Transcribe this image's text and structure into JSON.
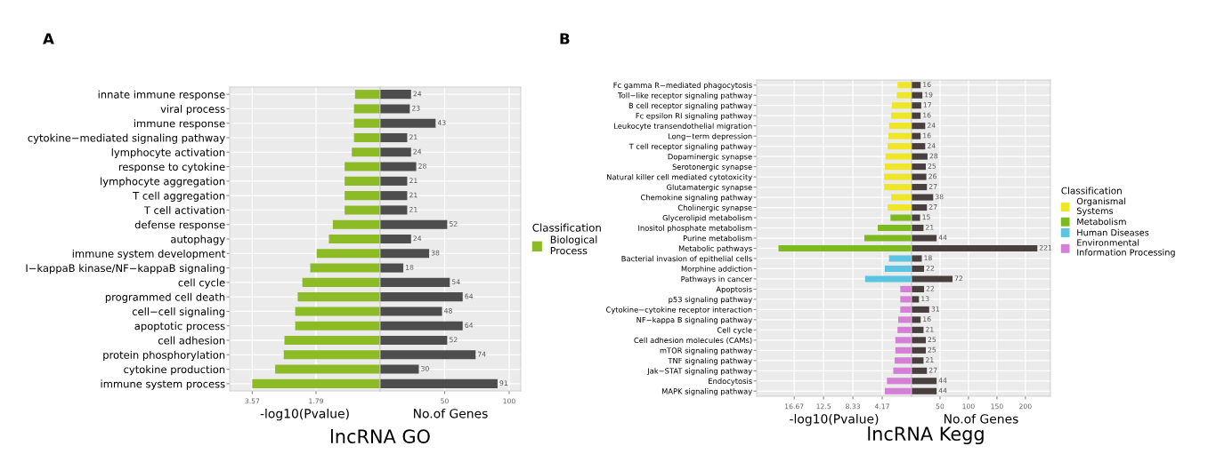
{
  "chart_data": [
    {
      "type": "bar",
      "orientation": "horizontal",
      "xlabel": "-log10(Pvalue)",
      "legend_title": "Classification",
      "legend": "right",
      "grid": true,
      "annotations": [
        "A",
        "lncRNA GO"
      ],
      "categories": [
        "innate immune response",
        "viral process",
        "immune response",
        "cytokine−mediated signaling pathway",
        "lymphocyte activation",
        "response to cytokine",
        "lymphocyte aggregation",
        "T cell aggregation",
        "T cell activation",
        "defense response",
        "autophagy",
        "immune system development",
        "I−kappaB kinase/NF−kappaB signaling",
        "cell cycle",
        "programmed cell death",
        "cell−cell signaling",
        "apoptotic process",
        "cell adhesion",
        "protein phosphorylation",
        "cytokine production",
        "immune system process"
      ],
      "series": [
        {
          "name": "Biological Process",
          "color": "#8cbb26",
          "values": [
            0.7,
            0.73,
            0.73,
            0.73,
            0.79,
            0.99,
            0.99,
            0.99,
            0.99,
            1.32,
            1.43,
            1.77,
            1.95,
            2.17,
            2.3,
            2.37,
            2.37,
            2.67,
            2.69,
            2.93,
            3.57
          ]
        }
      ],
      "xlim": [
        4.2,
        0
      ],
      "xticks": [
        3.57,
        1.79
      ]
    },
    {
      "type": "bar",
      "orientation": "horizontal",
      "xlabel": "No.of Genes",
      "grid": true,
      "tick_labels": "x",
      "data_labels": true,
      "categories": [
        null,
        null,
        null,
        null,
        null,
        null,
        null,
        null,
        null,
        null,
        null,
        null,
        null,
        null,
        null,
        null,
        null,
        null,
        null,
        null,
        null
      ],
      "color": "#4d4d4d",
      "values": [
        24,
        23,
        43,
        21,
        24,
        28,
        21,
        21,
        21,
        52,
        24,
        38,
        18,
        54,
        64,
        48,
        64,
        52,
        74,
        30,
        91
      ],
      "xlim": [
        0,
        109
      ],
      "xticks": [
        50,
        100
      ]
    },
    {
      "type": "bar",
      "orientation": "horizontal",
      "xlabel": "-log10(Pvalue)",
      "legend_title": "Classification",
      "legend": "right",
      "grid": true,
      "annotations": [
        "B",
        "lncRNA Kegg"
      ],
      "categories": [
        "Fc gamma R−mediated phagocytosis",
        "Toll−like receptor signaling pathway",
        "B cell receptor signaling pathway",
        "Fc epsilon RI signaling pathway",
        "Leukocyte transendothelial migration",
        "Long−term depression",
        "T cell receptor signaling pathway",
        "Dopaminergic synapse",
        "Serotonergic synapse",
        "Natural killer cell mediated cytotoxicity",
        "Glutamatergic synapse",
        "Chemokine signaling pathway",
        "Cholinergic synapse",
        "Glycerolipid metabolism",
        "Inositol phosphate metabolism",
        "Purine metabolism",
        "Metabolic pathways",
        "Bacterial invasion of epithelial cells",
        "Morphine addiction",
        "Pathways in cancer",
        "Apoptosis",
        "p53 signaling pathway",
        "Cytokine−cytokine receptor interaction",
        "NF−kappa B signaling pathway",
        "Cell cycle",
        "Cell adhesion molecules (CAMs)",
        "mTOR signaling pathway",
        "TNF signaling pathway",
        "Jak−STAT signaling pathway",
        "Endocytosis",
        "MAPK signaling pathway"
      ],
      "series": [
        {
          "name": "Organismal Systems",
          "color": "#f0e628",
          "values": [
            2.0,
            2.1,
            2.8,
            2.9,
            3.2,
            3.3,
            3.4,
            3.7,
            3.8,
            3.9,
            3.9,
            2.9,
            3.4,
            null,
            null,
            null,
            null,
            null,
            null,
            null,
            null,
            null,
            null,
            null,
            null,
            null,
            null,
            null,
            null,
            null,
            null
          ]
        },
        {
          "name": "Metabolism",
          "color": "#7cba1e",
          "values": [
            null,
            null,
            null,
            null,
            null,
            null,
            null,
            null,
            null,
            null,
            null,
            null,
            null,
            3.0,
            4.8,
            6.7,
            18.9,
            null,
            null,
            null,
            null,
            null,
            null,
            null,
            null,
            null,
            null,
            null,
            null,
            null,
            null
          ]
        },
        {
          "name": "Human Diseases",
          "color": "#5bc4e0",
          "values": [
            null,
            null,
            null,
            null,
            null,
            null,
            null,
            null,
            null,
            null,
            null,
            null,
            null,
            null,
            null,
            null,
            null,
            3.2,
            3.8,
            6.6,
            null,
            null,
            null,
            null,
            null,
            null,
            null,
            null,
            null,
            null,
            null
          ]
        },
        {
          "name": "Environmental Information Processing",
          "color": "#d57fd6",
          "values": [
            null,
            null,
            null,
            null,
            null,
            null,
            null,
            null,
            null,
            null,
            null,
            null,
            null,
            null,
            null,
            null,
            null,
            null,
            null,
            null,
            1.6,
            1.6,
            1.6,
            1.9,
            2.0,
            2.3,
            2.3,
            2.4,
            2.6,
            3.5,
            3.8
          ]
        }
      ],
      "xlim": [
        22,
        0
      ],
      "xticks": [
        16.67,
        12.5,
        8.33,
        4.17
      ]
    },
    {
      "type": "bar",
      "orientation": "horizontal",
      "xlabel": "No.of Genes",
      "grid": true,
      "tick_labels": "x",
      "data_labels": true,
      "categories": [
        null,
        null,
        null,
        null,
        null,
        null,
        null,
        null,
        null,
        null,
        null,
        null,
        null,
        null,
        null,
        null,
        null,
        null,
        null,
        null,
        null,
        null,
        null,
        null,
        null,
        null,
        null,
        null,
        null,
        null,
        null
      ],
      "color": "#4a3f3f",
      "values": [
        16,
        19,
        17,
        16,
        24,
        16,
        24,
        28,
        25,
        26,
        27,
        38,
        27,
        15,
        21,
        44,
        221,
        18,
        22,
        72,
        22,
        13,
        31,
        16,
        21,
        25,
        25,
        21,
        27,
        44,
        44
      ],
      "xlim": [
        0,
        244
      ],
      "xticks": [
        50,
        100,
        150,
        200
      ]
    }
  ]
}
